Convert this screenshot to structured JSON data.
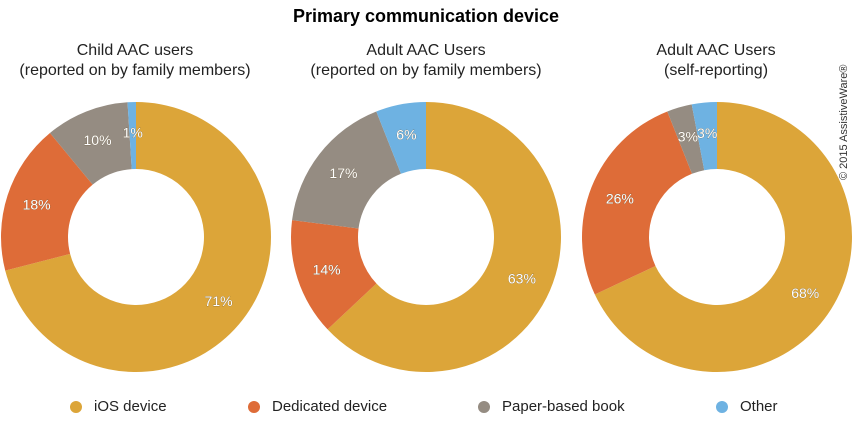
{
  "title": "Primary communication device",
  "copyright": "© 2015 AssistiveWare®",
  "colors": {
    "ios": "#dca539",
    "dedicated": "#de6c38",
    "paper": "#958c82",
    "other": "#6eb2e2"
  },
  "charts": [
    {
      "subtitle_line1": "Child AAC users",
      "subtitle_line2": "(reported on by family members)"
    },
    {
      "subtitle_line1": "Adult AAC Users",
      "subtitle_line2": "(reported on by family members)"
    },
    {
      "subtitle_line1": "Adult AAC Users",
      "subtitle_line2": "(self-reporting)"
    }
  ],
  "legend": [
    {
      "label": "iOS device",
      "color": "#dca539"
    },
    {
      "label": "Dedicated device",
      "color": "#de6c38"
    },
    {
      "label": "Paper-based book",
      "color": "#958c82"
    },
    {
      "label": "Other",
      "color": "#6eb2e2"
    }
  ],
  "chart_data": [
    {
      "type": "pie",
      "subtype": "donut",
      "title": "Child AAC users (reported on by family members)",
      "categories": [
        "iOS device",
        "Dedicated device",
        "Paper-based book",
        "Other"
      ],
      "values": [
        71,
        18,
        10,
        1
      ],
      "labels": [
        "71%",
        "18%",
        "10%",
        "1%"
      ]
    },
    {
      "type": "pie",
      "subtype": "donut",
      "title": "Adult AAC Users (reported on by family members)",
      "categories": [
        "iOS device",
        "Dedicated device",
        "Paper-based book",
        "Other"
      ],
      "values": [
        63,
        14,
        17,
        6
      ],
      "labels": [
        "63%",
        "14%",
        "17%",
        "6%"
      ]
    },
    {
      "type": "pie",
      "subtype": "donut",
      "title": "Adult AAC Users (self-reporting)",
      "categories": [
        "iOS device",
        "Dedicated device",
        "Paper-based book",
        "Other"
      ],
      "values": [
        68,
        26,
        3,
        3
      ],
      "labels": [
        "68%",
        "26%",
        "3%",
        "3%"
      ]
    }
  ]
}
